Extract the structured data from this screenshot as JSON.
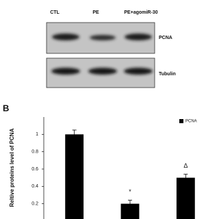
{
  "blot": {
    "lanes": [
      "CTL",
      "PE",
      "PE+agomiR-30"
    ],
    "bands": [
      "PCNA",
      "Tubulin"
    ]
  },
  "panel_label": "B",
  "chart_data": {
    "type": "bar",
    "ylabel": "Reltive proteins level of PCNA",
    "categories": [
      null,
      null,
      null
    ],
    "series": [
      {
        "name": "PCNA",
        "color": "#000000",
        "values": [
          1.0,
          0.2,
          0.5
        ],
        "errors": [
          0.05,
          0.04,
          0.04
        ]
      }
    ],
    "annotations": [
      null,
      "*",
      "Δ"
    ],
    "ylim": [
      0,
      1.2
    ],
    "yticks": [
      0.2,
      0.4,
      0.6,
      0.8,
      1
    ],
    "grid": false,
    "legend": "upper right"
  }
}
